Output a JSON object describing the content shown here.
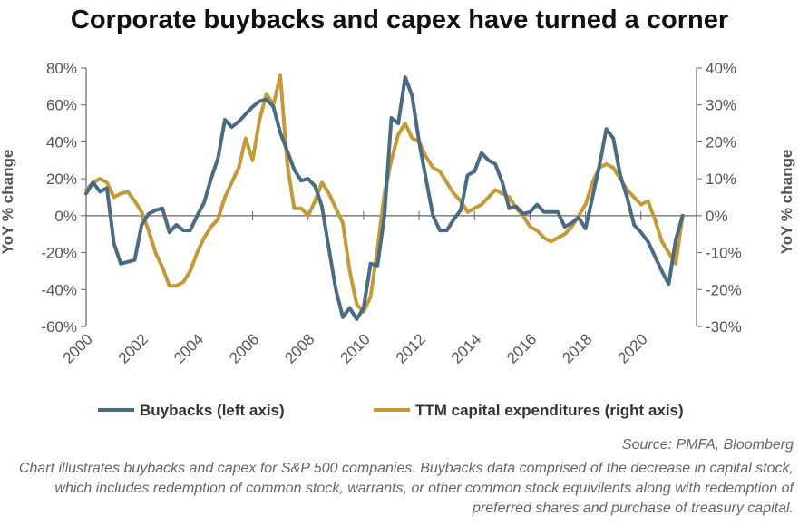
{
  "chart_data": {
    "type": "line",
    "title": "Corporate buybacks and capex have turned a corner",
    "ylabel_left": "YoY % change",
    "ylabel_right": "YoY % change",
    "ylim_left": [
      -60,
      80
    ],
    "ylim_right": [
      -30,
      40
    ],
    "xlim": [
      2000,
      2022
    ],
    "x_ticks": [
      "2000",
      "2002",
      "2004",
      "2006",
      "2008",
      "2010",
      "2012",
      "2014",
      "2016",
      "2018",
      "2020"
    ],
    "y_ticks_left": [
      "80%",
      "60%",
      "40%",
      "20%",
      "0%",
      "-20%",
      "-40%",
      "-60%"
    ],
    "y_ticks_right": [
      "40%",
      "30%",
      "20%",
      "10%",
      "0%",
      "-10%",
      "-20%",
      "-30%"
    ],
    "zero_line": true,
    "grid": false,
    "legend_position": "bottom",
    "series": [
      {
        "name": "Buybacks (left axis)",
        "axis": "left",
        "color": "#4a6b82",
        "x": [
          2000.0,
          2000.25,
          2000.5,
          2000.75,
          2001.0,
          2001.25,
          2001.5,
          2001.75,
          2002.0,
          2002.25,
          2002.5,
          2002.75,
          2003.0,
          2003.25,
          2003.5,
          2003.75,
          2004.0,
          2004.25,
          2004.5,
          2004.75,
          2005.0,
          2005.25,
          2005.5,
          2005.75,
          2006.0,
          2006.25,
          2006.5,
          2006.75,
          2007.0,
          2007.25,
          2007.5,
          2007.75,
          2008.0,
          2008.25,
          2008.5,
          2008.75,
          2009.0,
          2009.25,
          2009.5,
          2009.75,
          2010.0,
          2010.25,
          2010.5,
          2010.75,
          2011.0,
          2011.25,
          2011.5,
          2011.75,
          2012.0,
          2012.25,
          2012.5,
          2012.75,
          2013.0,
          2013.25,
          2013.5,
          2013.75,
          2014.0,
          2014.25,
          2014.5,
          2014.75,
          2015.0,
          2015.25,
          2015.5,
          2015.75,
          2016.0,
          2016.25,
          2016.5,
          2016.75,
          2017.0,
          2017.25,
          2017.5,
          2017.75,
          2018.0,
          2018.25,
          2018.5,
          2018.75,
          2019.0,
          2019.25,
          2019.5,
          2019.75,
          2020.0,
          2020.25,
          2020.5,
          2020.75,
          2021.0,
          2021.25,
          2021.5
        ],
        "values": [
          12,
          18,
          13,
          15,
          -15,
          -26,
          -25,
          -24,
          -5,
          1,
          3,
          4,
          -9,
          -5,
          -8,
          -8,
          0,
          7,
          20,
          31,
          52,
          48,
          51,
          55,
          59,
          62,
          63,
          59,
          45,
          35,
          25,
          19,
          20,
          16,
          5,
          -18,
          -40,
          -55,
          -50,
          -56,
          -50,
          -26,
          -27,
          0,
          53,
          50,
          75,
          65,
          40,
          20,
          0,
          -8,
          -8,
          -2,
          3,
          22,
          24,
          34,
          30,
          28,
          18,
          4,
          5,
          1,
          2,
          6,
          2,
          2,
          2,
          -6,
          -4,
          -1,
          -7,
          10,
          27,
          47,
          42,
          22,
          10,
          -5,
          -9,
          -14,
          -22,
          -30,
          -37,
          -13,
          0
        ]
      },
      {
        "name": "TTM capital expenditures (right axis)",
        "axis": "right",
        "color": "#c49a38",
        "x": [
          2000.0,
          2000.25,
          2000.5,
          2000.75,
          2001.0,
          2001.25,
          2001.5,
          2001.75,
          2002.0,
          2002.25,
          2002.5,
          2002.75,
          2003.0,
          2003.25,
          2003.5,
          2003.75,
          2004.0,
          2004.25,
          2004.5,
          2004.75,
          2005.0,
          2005.25,
          2005.5,
          2005.75,
          2006.0,
          2006.25,
          2006.5,
          2006.75,
          2007.0,
          2007.25,
          2007.5,
          2007.75,
          2008.0,
          2008.25,
          2008.5,
          2008.75,
          2009.0,
          2009.25,
          2009.5,
          2009.75,
          2010.0,
          2010.25,
          2010.5,
          2010.75,
          2011.0,
          2011.25,
          2011.5,
          2011.75,
          2012.0,
          2012.25,
          2012.5,
          2012.75,
          2013.0,
          2013.25,
          2013.5,
          2013.75,
          2014.0,
          2014.25,
          2014.5,
          2014.75,
          2015.0,
          2015.25,
          2015.5,
          2015.75,
          2016.0,
          2016.25,
          2016.5,
          2016.75,
          2017.0,
          2017.25,
          2017.5,
          2017.75,
          2018.0,
          2018.25,
          2018.5,
          2018.75,
          2019.0,
          2019.25,
          2019.5,
          2019.75,
          2020.0,
          2020.25,
          2020.5,
          2020.75,
          2021.0,
          2021.25,
          2021.5
        ],
        "values": [
          7,
          9,
          10,
          9,
          5,
          6,
          6.5,
          4,
          1,
          -4,
          -10,
          -14,
          -19,
          -19,
          -18,
          -15,
          -10,
          -6,
          -3,
          -1,
          5,
          9,
          13,
          21,
          15,
          26,
          33,
          30,
          38,
          14,
          2,
          2,
          0,
          4,
          9,
          6,
          2,
          -2,
          -15,
          -24,
          -26,
          -22,
          -9,
          6,
          15,
          22,
          25,
          21,
          20,
          16,
          13,
          12,
          9,
          6,
          4,
          1,
          2,
          3,
          5,
          7,
          6,
          5,
          2,
          0,
          -3,
          -4,
          -6,
          -7,
          -6,
          -5,
          -3,
          0,
          3,
          9,
          13,
          14,
          13,
          10,
          7,
          5,
          3,
          4,
          -1,
          -7,
          -10,
          -13,
          0
        ]
      }
    ],
    "source": "Source: PMFA, Bloomberg",
    "note": "Chart illustrates buybacks and capex for S&P 500 companies. Buybacks data comprised of the decrease in capital stock, which includes redemption of common stock, warrants, or other common stock equivilents along with redemption of preferred shares and purchase of treasury capital."
  }
}
